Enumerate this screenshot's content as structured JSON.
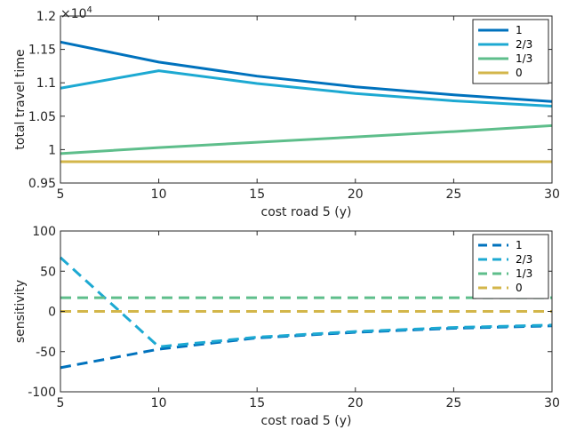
{
  "chart_data": [
    {
      "type": "line",
      "title": "",
      "xlabel": "cost road 5 (y)",
      "ylabel": "total travel time",
      "exponent_label": "×10",
      "exponent_power": "4",
      "xlim": [
        5,
        30
      ],
      "ylim": [
        0.95,
        1.2
      ],
      "xticks": [
        "5",
        "10",
        "15",
        "20",
        "25",
        "30"
      ],
      "yticks": [
        "0.95",
        "1",
        "1.05",
        "1.1",
        "1.15",
        "1.2"
      ],
      "x": [
        5,
        10,
        15,
        20,
        25,
        30
      ],
      "line_style": "solid",
      "legend_position": "top-right",
      "series": [
        {
          "name": "1",
          "color": "#0072BD",
          "values": [
            1.161,
            1.131,
            1.11,
            1.094,
            1.082,
            1.072
          ]
        },
        {
          "name": "2/3",
          "color": "#1DA9D2",
          "values": [
            1.092,
            1.118,
            1.099,
            1.084,
            1.073,
            1.065
          ]
        },
        {
          "name": "1/3",
          "color": "#5EBE8B",
          "values": [
            0.994,
            1.003,
            1.011,
            1.019,
            1.027,
            1.036
          ]
        },
        {
          "name": "0",
          "color": "#D3B64A",
          "values": [
            0.982,
            0.982,
            0.982,
            0.982,
            0.982,
            0.982
          ]
        }
      ]
    },
    {
      "type": "line",
      "title": "",
      "xlabel": "cost road 5 (y)",
      "ylabel": "sensitivity",
      "xlim": [
        5,
        30
      ],
      "ylim": [
        -100,
        100
      ],
      "xticks": [
        "5",
        "10",
        "15",
        "20",
        "25",
        "30"
      ],
      "yticks": [
        "-100",
        "-50",
        "0",
        "50",
        "100"
      ],
      "x": [
        5,
        10,
        15,
        20,
        25,
        30
      ],
      "line_style": "dashed",
      "legend_position": "top-right",
      "series": [
        {
          "name": "1",
          "color": "#0072BD",
          "values": [
            -70,
            -47,
            -33,
            -26,
            -21,
            -18
          ]
        },
        {
          "name": "2/3",
          "color": "#1DA9D2",
          "values": [
            67,
            -44,
            -32,
            -25,
            -20,
            -17
          ]
        },
        {
          "name": "1/3",
          "color": "#5EBE8B",
          "values": [
            17,
            17,
            17,
            17,
            17,
            17
          ]
        },
        {
          "name": "0",
          "color": "#D3B64A",
          "values": [
            0,
            0,
            0,
            0,
            0,
            0
          ]
        }
      ]
    }
  ]
}
